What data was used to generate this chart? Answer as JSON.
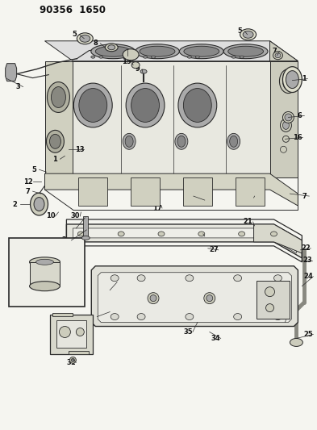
{
  "title": "90356  1650",
  "bg_color": "#f5f5f0",
  "fig_width": 3.93,
  "fig_height": 5.33,
  "dpi": 100,
  "line_color": "#2a2a2a",
  "fill_light": "#e8e8e0",
  "fill_mid": "#ccccbb",
  "fill_dark": "#aaaaaa"
}
